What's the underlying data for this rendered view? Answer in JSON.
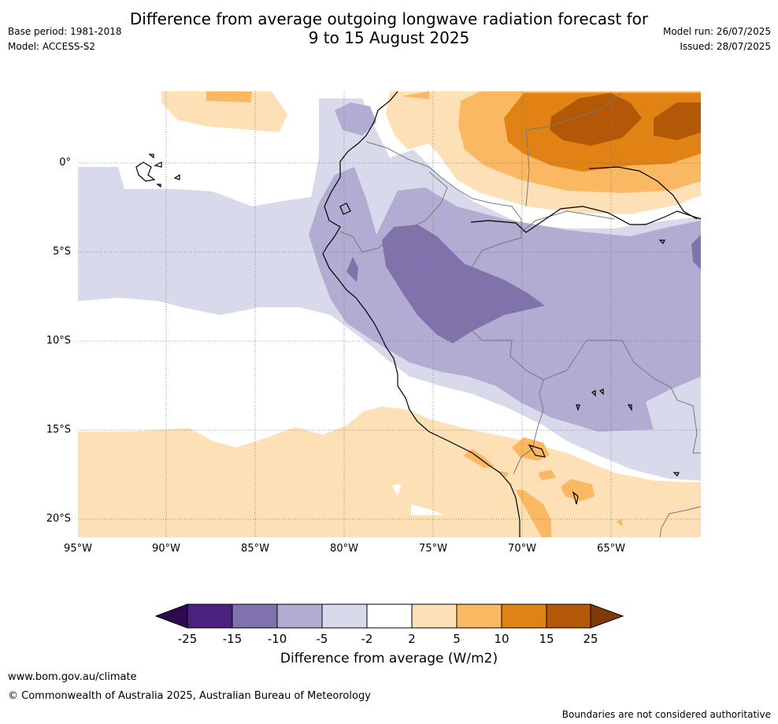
{
  "header": {
    "title_line1": "Difference from average outgoing longwave radiation forecast for",
    "title_line2": "9 to 15 August 2025",
    "base_period": "Base period: 1981-2018",
    "model": "Model: ACCESS-S2",
    "model_run": "Model run: 26/07/2025",
    "issued": "Issued: 28/07/2025"
  },
  "map": {
    "lat_labels": [
      "0°",
      "5°S",
      "10°S",
      "15°S",
      "20°S"
    ],
    "lon_labels": [
      "95°W",
      "90°W",
      "85°W",
      "80°W",
      "75°W",
      "70°W",
      "65°W"
    ]
  },
  "colorbar": {
    "ticks": [
      "-25",
      "-15",
      "-10",
      "-5",
      "-2",
      "2",
      "5",
      "10",
      "15",
      "25"
    ],
    "colors": {
      "below_min": "#2d0a4e",
      "bins": [
        "#4a2080",
        "#8073ac",
        "#b2abd2",
        "#d8daeb",
        "#ffffff",
        "#fde0b6",
        "#fbb862",
        "#e08214",
        "#b35806"
      ],
      "above_max": "#7f3b08"
    },
    "title": "Difference from average (W/m2)"
  },
  "footer": {
    "url": "www.bom.gov.au/climate",
    "copyright": "© Commonwealth of Australia 2025, Australian Bureau of Meteorology",
    "disclaimer": "Boundaries are not considered authoritative"
  }
}
